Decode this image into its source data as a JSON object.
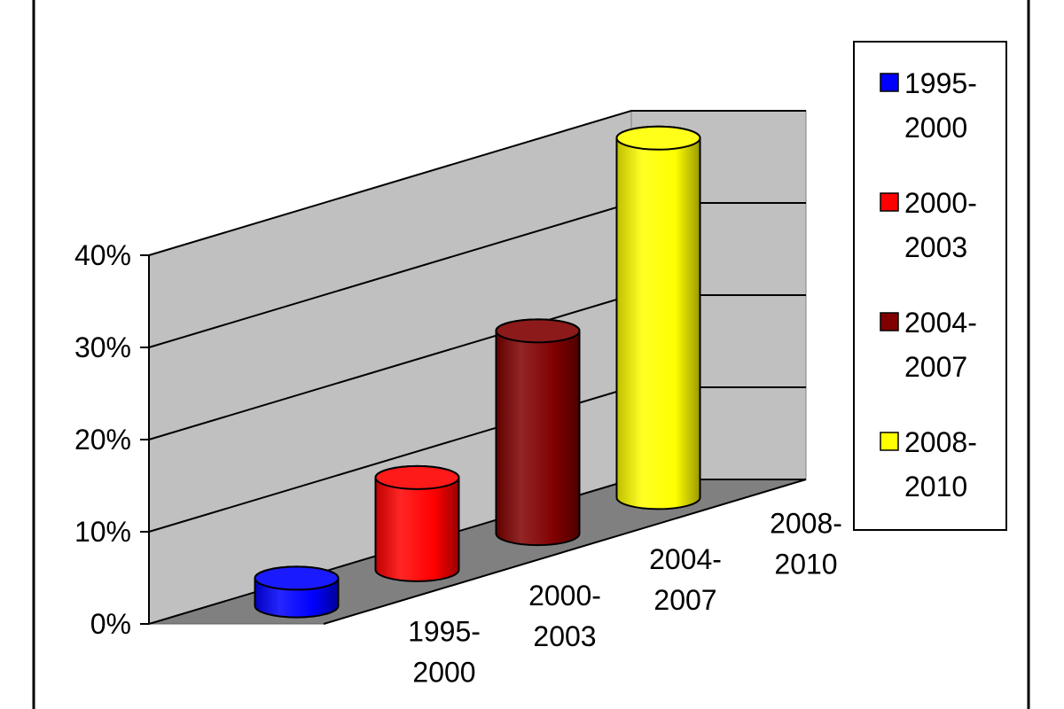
{
  "chart_data": {
    "type": "bar3d",
    "categories": [
      "1995-2000",
      "2000-2003",
      "2004-2007",
      "2008-2010"
    ],
    "values": [
      3,
      10,
      22,
      39
    ],
    "colors": [
      "#0000ff",
      "#ff0000",
      "#800000",
      "#ffff00"
    ],
    "ylim": [
      0,
      40
    ],
    "yticks": [
      {
        "value": 0,
        "label": "0%"
      },
      {
        "value": 10,
        "label": "10%"
      },
      {
        "value": 20,
        "label": "20%"
      },
      {
        "value": 30,
        "label": "30%"
      },
      {
        "value": 40,
        "label": "40%"
      }
    ],
    "grid": true,
    "legend": "right"
  }
}
